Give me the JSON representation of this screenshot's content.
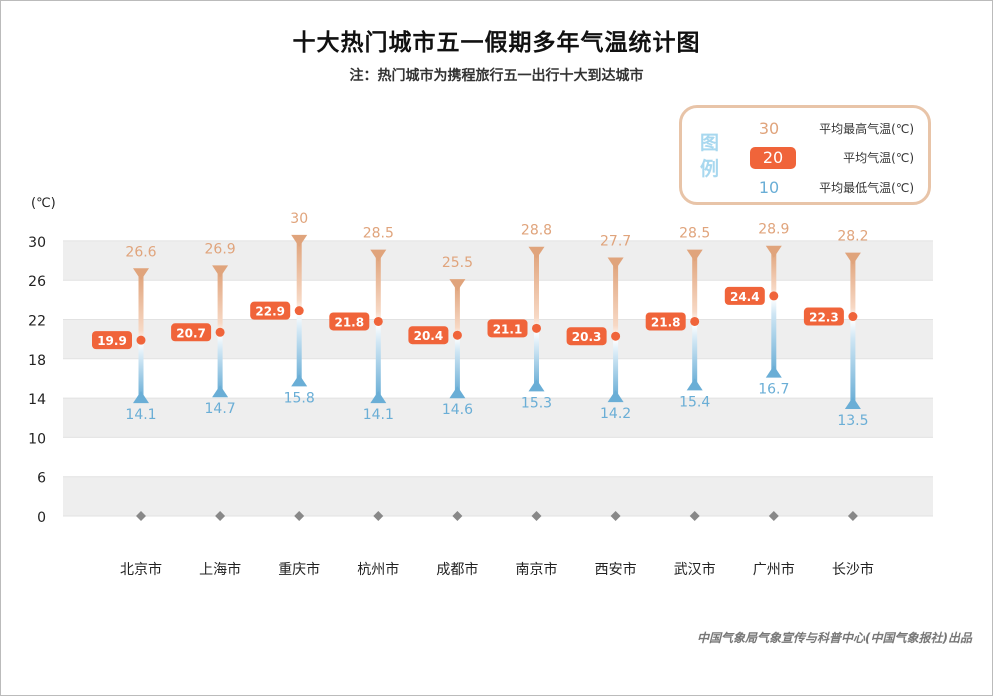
{
  "title": "十大热门城市五一假期多年气温统计图",
  "subtitle": "注：热门城市为携程旅行五一出行十大到达城市",
  "legend": {
    "title": "图例",
    "items": [
      {
        "sample": "30",
        "label": "平均最高气温(℃)"
      },
      {
        "sample": "20",
        "label": "平均气温(℃)"
      },
      {
        "sample": "10",
        "label": "平均最低气温(℃)"
      }
    ]
  },
  "footer": "中国气象局气象宣传与科普中心(中国气象报社)出品",
  "colors": {
    "high": "#e0a47c",
    "avg": "#f0643a",
    "low": "#6aaed6",
    "band": "#eeeeee"
  },
  "chart_data": {
    "type": "range",
    "ylabel": "(℃)",
    "yticks": [
      0,
      6,
      10,
      14,
      18,
      22,
      26,
      30
    ],
    "grid": "alternating bands",
    "legend_position": "top-right",
    "categories": [
      "北京市",
      "上海市",
      "重庆市",
      "杭州市",
      "成都市",
      "南京市",
      "西安市",
      "武汉市",
      "广州市",
      "长沙市"
    ],
    "series": [
      {
        "name": "平均最高气温(℃)",
        "values": [
          26.6,
          26.9,
          30,
          28.5,
          25.5,
          28.8,
          27.7,
          28.5,
          28.9,
          28.2
        ]
      },
      {
        "name": "平均气温(℃)",
        "values": [
          19.9,
          20.7,
          22.9,
          21.8,
          20.4,
          21.1,
          20.3,
          21.8,
          24.4,
          22.3
        ]
      },
      {
        "name": "平均最低气温(℃)",
        "values": [
          14.1,
          14.7,
          15.8,
          14.1,
          14.6,
          15.3,
          14.2,
          15.4,
          16.7,
          13.5
        ]
      }
    ]
  }
}
